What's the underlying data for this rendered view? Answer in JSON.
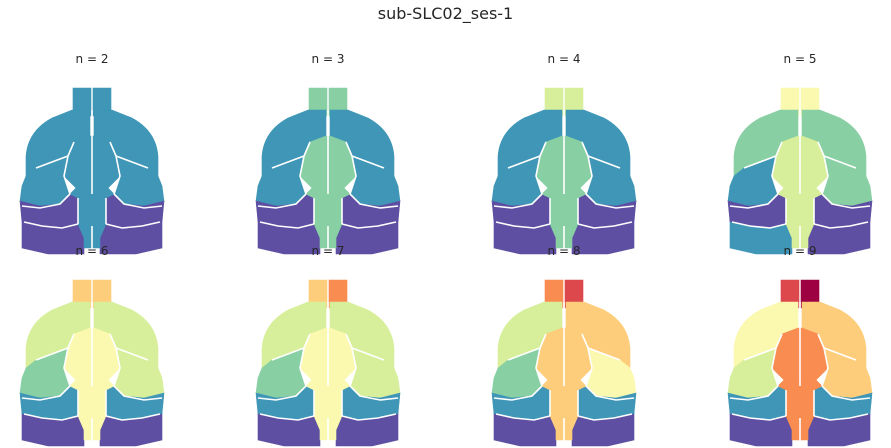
{
  "figure": {
    "suptitle": "sub-SLC02_ses-1"
  },
  "colors": {
    "c1": "#5e4fa2",
    "c2": "#3f96b7",
    "c3": "#88cfa4",
    "c4": "#d7ef9b",
    "c5": "#fbf8b0",
    "c6": "#fdcd7b",
    "c7": "#f88c51",
    "c8": "#dc484c",
    "c9": "#9e0142"
  },
  "chart_data": {
    "type": "heatmap",
    "description_note": "",
    "panels": [
      {
        "title": "n = 2",
        "regions": {
          "ob_l": "c2",
          "ob_r": "c2",
          "front_l": "c2",
          "front_r": "c2",
          "mid": "c2",
          "lat_l": "c2",
          "lat_r": "c2",
          "post_l": "c1",
          "post_r": "c1",
          "sub_l": "c1",
          "sub_r": "c1",
          "stem": "c2"
        }
      },
      {
        "title": "n = 3",
        "regions": {
          "ob_l": "c3",
          "ob_r": "c3",
          "front_l": "c2",
          "front_r": "c2",
          "mid": "c3",
          "lat_l": "c2",
          "lat_r": "c2",
          "post_l": "c1",
          "post_r": "c1",
          "sub_l": "c1",
          "sub_r": "c1",
          "stem": "c3"
        }
      },
      {
        "title": "n = 4",
        "regions": {
          "ob_l": "c4",
          "ob_r": "c4",
          "front_l": "c2",
          "front_r": "c2",
          "mid": "c3",
          "lat_l": "c2",
          "lat_r": "c2",
          "post_l": "c1",
          "post_r": "c1",
          "sub_l": "c1",
          "sub_r": "c1",
          "stem": "c3"
        }
      },
      {
        "title": "n = 5",
        "regions": {
          "ob_l": "c5",
          "ob_r": "c5",
          "front_l": "c3",
          "front_r": "c3",
          "mid": "c4",
          "lat_l": "c2",
          "lat_r": "c3",
          "post_l": "c1",
          "post_r": "c1",
          "sub_l": "c2",
          "sub_r": "c1",
          "stem": "c4"
        }
      },
      {
        "title": "n = 6",
        "regions": {
          "ob_l": "c6",
          "ob_r": "c6",
          "front_l": "c4",
          "front_r": "c4",
          "mid": "c5",
          "lat_l": "c3",
          "lat_r": "c4",
          "post_l": "c2",
          "post_r": "c2",
          "sub_l": "c1",
          "sub_r": "c1",
          "stem": "c5"
        }
      },
      {
        "title": "n = 7",
        "regions": {
          "ob_l": "c6",
          "ob_r": "c7",
          "front_l": "c4",
          "front_r": "c4",
          "mid": "c5",
          "lat_l": "c3",
          "lat_r": "c4",
          "post_l": "c2",
          "post_r": "c2",
          "sub_l": "c1",
          "sub_r": "c1",
          "stem": "c5"
        }
      },
      {
        "title": "n = 8",
        "regions": {
          "ob_l": "c7",
          "ob_r": "c8",
          "front_l": "c4",
          "front_r": "c6",
          "mid": "c6",
          "lat_l": "c3",
          "lat_r": "c5",
          "post_l": "c2",
          "post_r": "c2",
          "sub_l": "c1",
          "sub_r": "c1",
          "stem": "c6"
        }
      },
      {
        "title": "n = 9",
        "regions": {
          "ob_l": "c8",
          "ob_r": "c9",
          "front_l": "c5",
          "front_r": "c6",
          "mid": "c7",
          "lat_l": "c4",
          "lat_r": "c6",
          "post_l": "c2",
          "post_r": "c2",
          "sub_l": "c1",
          "sub_r": "c1",
          "stem": "c7"
        }
      }
    ]
  }
}
